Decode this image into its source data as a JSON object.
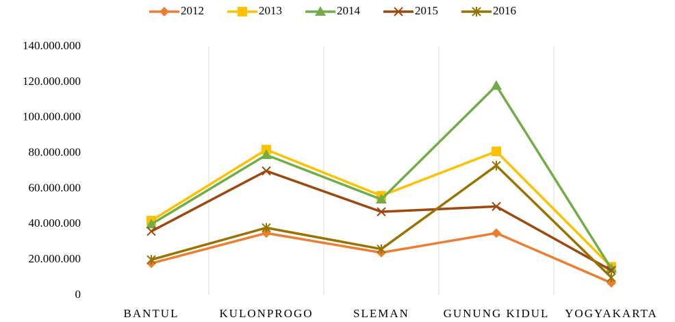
{
  "chart_data": {
    "type": "line",
    "categories": [
      "BANTUL",
      "KULONPROGO",
      "SLEMAN",
      "GUNUNG KIDUL",
      "YOGYAKARTA"
    ],
    "series": [
      {
        "name": "2012",
        "color": "#ED7D31",
        "marker": "diamond",
        "values": [
          18000000,
          35000000,
          24000000,
          35000000,
          7000000
        ]
      },
      {
        "name": "2013",
        "color": "#FFC000",
        "marker": "square",
        "values": [
          42000000,
          82000000,
          56000000,
          81000000,
          16000000
        ]
      },
      {
        "name": "2014",
        "color": "#70AD47",
        "marker": "triangle",
        "values": [
          40000000,
          79000000,
          54000000,
          118000000,
          15000000
        ]
      },
      {
        "name": "2015",
        "color": "#9E480E",
        "marker": "x",
        "values": [
          36000000,
          70000000,
          47000000,
          50000000,
          14000000
        ]
      },
      {
        "name": "2016",
        "color": "#997300",
        "marker": "star",
        "values": [
          20000000,
          38000000,
          26000000,
          73000000,
          10000000
        ]
      }
    ],
    "ylim": [
      0,
      140000000
    ],
    "yticks": [
      0,
      {
        "value": 20000000,
        "label": "20.000.000"
      },
      {
        "value": 40000000,
        "label": "40.000.000"
      },
      {
        "value": 60000000,
        "label": "60.000.000"
      },
      {
        "value": 80000000,
        "label": "80.000.000"
      },
      {
        "value": 100000000,
        "label": "100.000.000"
      },
      {
        "value": 120000000,
        "label": "120.000.000"
      },
      {
        "value": 140000000,
        "label": "140.000.000"
      }
    ],
    "grid": "category",
    "legend": "top"
  }
}
